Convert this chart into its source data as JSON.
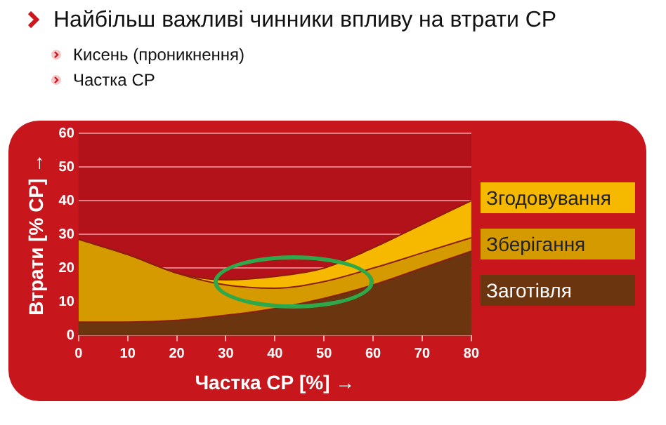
{
  "chart_data": {
    "type": "area",
    "title": "Найбільш важливі чинники впливу на втрати СР",
    "annotations": [
      "Кисень (проникнення)",
      "Частка СР"
    ],
    "xlabel": "Частка СР [%] →",
    "ylabel": "Втрати [% СР] →",
    "x": [
      0,
      10,
      20,
      30,
      40,
      50,
      60,
      70,
      80
    ],
    "xlim": [
      0,
      80
    ],
    "xticks": [
      0,
      10,
      20,
      30,
      40,
      50,
      60,
      70,
      80
    ],
    "ylim": [
      0,
      60
    ],
    "yticks": [
      0,
      10,
      20,
      30,
      40,
      50,
      60
    ],
    "stacked": true,
    "grid": "y",
    "legend": "right",
    "series": [
      {
        "name": "Заготівля",
        "color": "#6b3510",
        "values": [
          4,
          4,
          4.5,
          6,
          8,
          11,
          15,
          20,
          25
        ]
      },
      {
        "name": "Зберігання",
        "color": "#d49a00",
        "values": [
          24.5,
          20,
          14,
          9,
          6,
          5,
          5,
          4.5,
          4
        ]
      },
      {
        "name": "Згодовування",
        "color": "#f7b900",
        "values": [
          0,
          0,
          0,
          1.5,
          3.5,
          4,
          6,
          8.5,
          11
        ]
      }
    ]
  }
}
